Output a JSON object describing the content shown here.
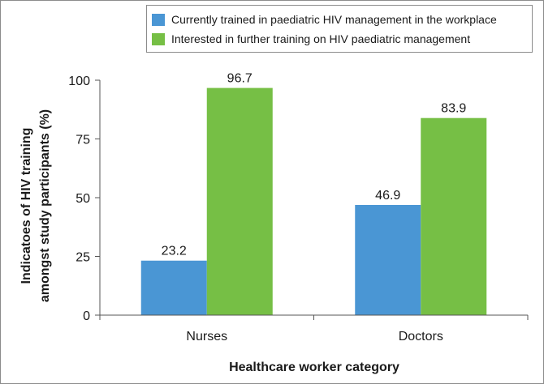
{
  "chart_data": {
    "type": "bar",
    "categories": [
      "Nurses",
      "Doctors"
    ],
    "series": [
      {
        "name": "Currently trained in paediatric HIV management in the workplace",
        "values": [
          23.2,
          46.9
        ],
        "color": "#4a96d4"
      },
      {
        "name": "Interested in further training on HIV paediatric management",
        "values": [
          96.7,
          83.9
        ],
        "color": "#76bf45"
      }
    ],
    "value_labels": [
      [
        "23.2",
        "46.9"
      ],
      [
        "96.7",
        "83.9"
      ]
    ],
    "title": "",
    "xlabel": "Healthcare worker category",
    "ylabel_lines": [
      "Indicatoes of HIV training",
      "amongst study participants (%)"
    ],
    "ylim": [
      0,
      100
    ],
    "yticks": [
      0,
      25,
      50,
      75,
      100
    ],
    "legend_position": "top-right"
  }
}
